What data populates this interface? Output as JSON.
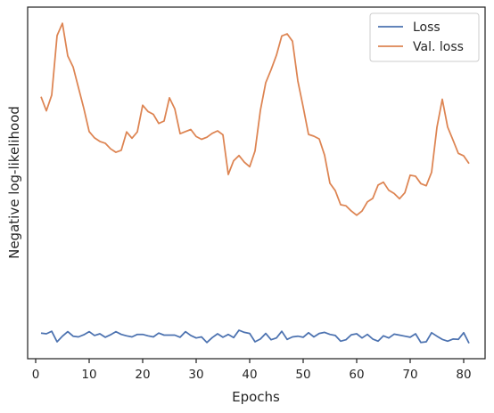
{
  "chart_data": {
    "type": "line",
    "title": "",
    "xlabel": "Epochs",
    "ylabel": "Negative log-likelihood",
    "xlim": [
      -1.5,
      84
    ],
    "ylim": [
      0,
      1
    ],
    "x_ticks": [
      0,
      10,
      20,
      30,
      40,
      50,
      60,
      70,
      80
    ],
    "y_ticks": [],
    "grid": false,
    "legend": {
      "placement": "top-right"
    },
    "x": [
      1,
      2,
      3,
      4,
      5,
      6,
      7,
      8,
      9,
      10,
      11,
      12,
      13,
      14,
      15,
      16,
      17,
      18,
      19,
      20,
      21,
      22,
      23,
      24,
      25,
      26,
      27,
      28,
      29,
      30,
      31,
      32,
      33,
      34,
      35,
      36,
      37,
      38,
      39,
      40,
      41,
      42,
      43,
      44,
      45,
      46,
      47,
      48,
      49,
      50,
      51,
      52,
      53,
      54,
      55,
      56,
      57,
      58,
      59,
      60,
      61,
      62,
      63,
      64,
      65,
      66,
      67,
      68,
      69,
      70,
      71,
      72,
      73,
      74,
      75,
      76,
      77,
      78,
      79,
      80,
      81
    ],
    "series": [
      {
        "name": "Loss",
        "color": "#4c72b0",
        "values": [
          0.073,
          0.071,
          0.078,
          0.048,
          0.064,
          0.077,
          0.064,
          0.062,
          0.068,
          0.077,
          0.066,
          0.071,
          0.061,
          0.068,
          0.077,
          0.069,
          0.065,
          0.062,
          0.069,
          0.069,
          0.065,
          0.062,
          0.073,
          0.067,
          0.067,
          0.067,
          0.061,
          0.077,
          0.066,
          0.059,
          0.062,
          0.046,
          0.06,
          0.071,
          0.061,
          0.069,
          0.06,
          0.081,
          0.075,
          0.072,
          0.048,
          0.056,
          0.072,
          0.054,
          0.059,
          0.078,
          0.055,
          0.062,
          0.064,
          0.061,
          0.074,
          0.062,
          0.072,
          0.075,
          0.069,
          0.066,
          0.05,
          0.054,
          0.068,
          0.071,
          0.059,
          0.069,
          0.056,
          0.05,
          0.065,
          0.059,
          0.07,
          0.067,
          0.064,
          0.061,
          0.071,
          0.046,
          0.048,
          0.074,
          0.064,
          0.055,
          0.05,
          0.056,
          0.055,
          0.074,
          0.044
        ]
      },
      {
        "name": "Val. loss",
        "color": "#dd8452",
        "values": [
          0.745,
          0.705,
          0.75,
          0.919,
          0.954,
          0.861,
          0.83,
          0.771,
          0.712,
          0.646,
          0.628,
          0.618,
          0.613,
          0.597,
          0.587,
          0.593,
          0.645,
          0.627,
          0.645,
          0.721,
          0.703,
          0.695,
          0.669,
          0.676,
          0.742,
          0.711,
          0.64,
          0.646,
          0.652,
          0.632,
          0.624,
          0.63,
          0.641,
          0.648,
          0.637,
          0.524,
          0.563,
          0.578,
          0.559,
          0.546,
          0.591,
          0.706,
          0.785,
          0.822,
          0.863,
          0.918,
          0.924,
          0.903,
          0.79,
          0.716,
          0.638,
          0.633,
          0.625,
          0.579,
          0.499,
          0.478,
          0.438,
          0.435,
          0.42,
          0.408,
          0.42,
          0.446,
          0.456,
          0.494,
          0.502,
          0.479,
          0.47,
          0.455,
          0.472,
          0.522,
          0.519,
          0.498,
          0.492,
          0.53,
          0.658,
          0.738,
          0.659,
          0.622,
          0.584,
          0.577,
          0.555
        ]
      }
    ]
  }
}
